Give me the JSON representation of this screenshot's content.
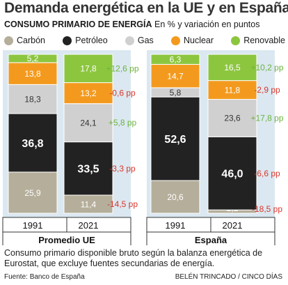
{
  "title": "Demanda energética en la UE y en España",
  "subtitle_bold": "CONSUMO PRIMARIO DE ENERGÍA",
  "subtitle_rest": " En % y variación en puntos",
  "note": "Consumo primario disponible bruto según la balanza energética de Eurostat, que excluye fuentes secundarias de energía.",
  "source": "Fuente: Banco de España",
  "credit": "BELÉN TRINCADO / CINCO DÍAS",
  "chart_data": {
    "type": "bar",
    "stacked": true,
    "unit": "%",
    "groups": [
      {
        "label": "Promedio UE",
        "categories": [
          "1991",
          "2021"
        ],
        "series": [
          {
            "name": "Carbón",
            "values": [
              25.9,
              11.4
            ]
          },
          {
            "name": "Petróleo",
            "values": [
              36.8,
              33.5
            ]
          },
          {
            "name": "Gas",
            "values": [
              18.3,
              24.1
            ]
          },
          {
            "name": "Nuclear",
            "values": [
              13.8,
              13.2
            ]
          },
          {
            "name": "Renovable",
            "values": [
              5.2,
              17.8
            ]
          }
        ],
        "change_labels": [
          "-14,5 pp",
          "-3,3 pp",
          "+5,8 pp",
          "-0,6 pp",
          "+12,6 pp"
        ]
      },
      {
        "label": "España",
        "categories": [
          "1991",
          "2021"
        ],
        "series": [
          {
            "name": "Carbón",
            "values": [
              20.6,
              2.1
            ]
          },
          {
            "name": "Petróleo",
            "values": [
              52.6,
              46.0
            ]
          },
          {
            "name": "Gas",
            "values": [
              5.8,
              23.6
            ]
          },
          {
            "name": "Nuclear",
            "values": [
              14.7,
              11.8
            ]
          },
          {
            "name": "Renovable",
            "values": [
              6.3,
              16.5
            ]
          }
        ],
        "change_labels": [
          "-18,5 pp",
          "-6,6 pp",
          "+17,8 pp",
          "-2,9 pp",
          "+10,2 pp"
        ]
      }
    ],
    "value_labels": [
      [
        [
          "25,9",
          "36,8",
          "18,3",
          "13,8",
          "5,2"
        ],
        [
          "11,4",
          "33,5",
          "24,1",
          "13,2",
          "17,8"
        ]
      ],
      [
        [
          "20,6",
          "52,6",
          "5,8",
          "14,7",
          "6,3"
        ],
        [
          "2,1",
          "46,0",
          "23,6",
          "11,8",
          "16,5"
        ]
      ]
    ],
    "colors": {
      "Carbón": "#b5ae9b",
      "Petróleo": "#222222",
      "Gas": "#d0d0d0",
      "Nuclear": "#f39a1e",
      "Renovable": "#8cc63f",
      "positive": "#6db33f",
      "negative": "#d9362b",
      "panel": "#dbe8f1"
    },
    "legend_position": "top"
  }
}
